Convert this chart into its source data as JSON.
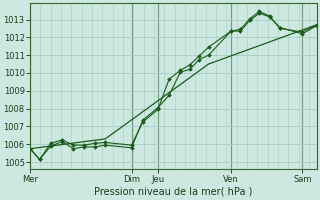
{
  "background_color": "#cce8e0",
  "grid_color": "#aaccc4",
  "line_color": "#1a5c1a",
  "marker_color": "#1a5c1a",
  "ylabel_ticks": [
    1005,
    1006,
    1007,
    1008,
    1009,
    1010,
    1011,
    1012,
    1013
  ],
  "ylim": [
    1004.6,
    1013.9
  ],
  "xlabel": "Pression niveau de la mer( hPa )",
  "day_labels": [
    "Mer",
    "Dim",
    "Jeu",
    "Ven",
    "Sam"
  ],
  "day_positions": [
    0,
    108,
    136,
    214,
    290
  ],
  "xmin": 0,
  "xmax": 305,
  "series1_x": [
    0,
    10,
    22,
    34,
    46,
    57,
    69,
    80,
    108,
    120,
    136,
    148,
    160,
    170,
    180,
    190,
    214,
    224,
    234,
    244,
    255,
    266,
    290,
    305
  ],
  "series1_y": [
    1005.75,
    1005.15,
    1005.9,
    1006.15,
    1005.75,
    1005.85,
    1005.85,
    1005.95,
    1005.8,
    1007.35,
    1008.05,
    1008.75,
    1010.05,
    1010.2,
    1010.75,
    1011.0,
    1012.35,
    1012.45,
    1013.05,
    1013.45,
    1013.2,
    1012.5,
    1012.3,
    1012.7
  ],
  "series2_x": [
    0,
    10,
    22,
    34,
    46,
    57,
    69,
    80,
    108,
    120,
    136,
    148,
    160,
    170,
    180,
    190,
    214,
    224,
    234,
    244,
    255,
    266,
    290,
    305
  ],
  "series2_y": [
    1005.75,
    1005.15,
    1006.05,
    1006.25,
    1005.95,
    1005.95,
    1006.05,
    1006.1,
    1005.95,
    1007.25,
    1007.95,
    1009.65,
    1010.15,
    1010.45,
    1010.95,
    1011.45,
    1012.35,
    1012.35,
    1012.95,
    1013.35,
    1013.15,
    1012.55,
    1012.2,
    1012.65
  ],
  "series3_x": [
    0,
    80,
    190,
    305
  ],
  "series3_y": [
    1005.75,
    1006.3,
    1010.5,
    1012.7
  ],
  "vline_color": "#336633",
  "vline_positions": [
    0,
    108,
    136,
    214,
    290
  ]
}
